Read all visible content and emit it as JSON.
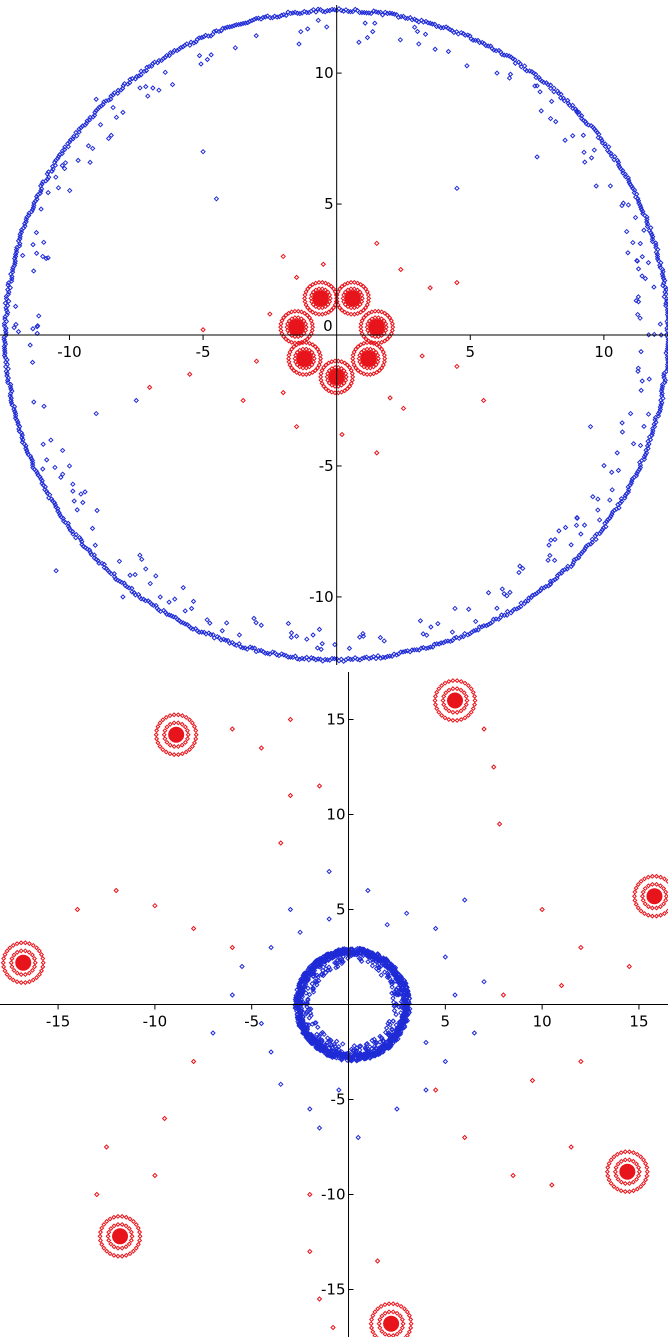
{
  "chart_data": [
    {
      "type": "scatter",
      "title": "",
      "xlabel": "",
      "ylabel": "",
      "xlim": [
        -12.6,
        12.4
      ],
      "ylim": [
        -12.6,
        12.6
      ],
      "xticks": [
        -10,
        -5,
        5,
        10
      ],
      "yticks": [
        -10,
        -5,
        5,
        10
      ],
      "xtick_labels": [
        "-10",
        "-5",
        "5",
        "10"
      ],
      "ytick_labels": [
        "-10",
        "-5",
        "5",
        "10"
      ],
      "origin_label": "0",
      "grid": false,
      "colors": {
        "blue": "#1f2bd6",
        "red": "#e8141b"
      },
      "blue_ring": {
        "center": [
          0,
          0
        ],
        "radius": 12.4
      },
      "red_clusters": [
        {
          "x": 1.5,
          "y": 0.3
        },
        {
          "x": 0.6,
          "y": 1.4
        },
        {
          "x": -0.6,
          "y": 1.4
        },
        {
          "x": -1.5,
          "y": 0.3
        },
        {
          "x": -1.2,
          "y": -0.9
        },
        {
          "x": 0.0,
          "y": -1.6
        },
        {
          "x": 1.2,
          "y": -0.9
        }
      ],
      "blue_scatter": [
        [
          -9,
          9
        ],
        [
          -8,
          8.5
        ],
        [
          -5,
          7
        ],
        [
          -4.5,
          5.2
        ],
        [
          7.5,
          6.8
        ],
        [
          9,
          8.5
        ],
        [
          6,
          10
        ],
        [
          4.5,
          5.6
        ],
        [
          -7.5,
          -2.5
        ],
        [
          -9,
          -3
        ],
        [
          -10,
          -5
        ],
        [
          9.5,
          -3.5
        ],
        [
          10.5,
          -4.5
        ],
        [
          9,
          -7
        ],
        [
          8,
          -9.5
        ],
        [
          -8,
          -10
        ],
        [
          -10.5,
          -9
        ],
        [
          11,
          -3
        ],
        [
          -11,
          3
        ],
        [
          1,
          -11.5
        ],
        [
          -1.5,
          -11.5
        ],
        [
          11.5,
          4
        ]
      ],
      "red_scatter": [
        [
          -2,
          3
        ],
        [
          -1.5,
          2.2
        ],
        [
          -2.5,
          0.8
        ],
        [
          -3,
          -1
        ],
        [
          -2,
          -2.2
        ],
        [
          -3.5,
          -2.5
        ],
        [
          -1.5,
          -3.5
        ],
        [
          1.5,
          3.5
        ],
        [
          2.4,
          2.5
        ],
        [
          3.5,
          1.8
        ],
        [
          3.2,
          -0.8
        ],
        [
          4.5,
          2
        ],
        [
          4.5,
          -1.2
        ],
        [
          2.5,
          -2.8
        ],
        [
          0.2,
          -3.8
        ],
        [
          1.5,
          -4.5
        ],
        [
          -5,
          0.2
        ],
        [
          -5.5,
          -1.5
        ],
        [
          -7,
          -2
        ],
        [
          5.5,
          -2.5
        ],
        [
          -0.5,
          2.7
        ],
        [
          2,
          -2.4
        ]
      ]
    },
    {
      "type": "scatter",
      "title": "",
      "xlabel": "",
      "ylabel": "",
      "xlim": [
        -18,
        16.5
      ],
      "ylim": [
        -17.5,
        17.5
      ],
      "xticks": [
        -15,
        -10,
        -5,
        5,
        10,
        15
      ],
      "yticks": [
        -15,
        -10,
        -5,
        5,
        10,
        15
      ],
      "xtick_labels": [
        "-15",
        "-10",
        "-5",
        "5",
        "10",
        "15"
      ],
      "ytick_labels": [
        "-15",
        "-10",
        "-5",
        "5",
        "10",
        "15"
      ],
      "grid": false,
      "colors": {
        "blue": "#1f2bd6",
        "red": "#e8141b"
      },
      "blue_ring": {
        "center": [
          0.2,
          0
        ],
        "radius": 2.8
      },
      "red_clusters": [
        {
          "x": 5.5,
          "y": 16
        },
        {
          "x": -8.9,
          "y": 14.2
        },
        {
          "x": 15.8,
          "y": 5.7
        },
        {
          "x": -16.8,
          "y": 2.2
        },
        {
          "x": 14.4,
          "y": -8.8
        },
        {
          "x": -11.8,
          "y": -12.2
        },
        {
          "x": 2.2,
          "y": -16.8
        }
      ],
      "blue_scatter": [
        [
          -3,
          5
        ],
        [
          -2.5,
          3.8
        ],
        [
          -4,
          3
        ],
        [
          -5.5,
          2
        ],
        [
          -6,
          0.5
        ],
        [
          -7,
          -1.5
        ],
        [
          -4,
          -2.5
        ],
        [
          -3.5,
          -4.2
        ],
        [
          -2,
          -5.5
        ],
        [
          -1.5,
          -6.5
        ],
        [
          0.5,
          -7
        ],
        [
          2.5,
          -5.5
        ],
        [
          4,
          -4.5
        ],
        [
          5,
          -3
        ],
        [
          6.5,
          -1.5
        ],
        [
          5.5,
          0.5
        ],
        [
          5,
          2.5
        ],
        [
          4.5,
          4
        ],
        [
          3,
          4.8
        ],
        [
          1,
          6
        ],
        [
          -1,
          7
        ],
        [
          6,
          5.5
        ],
        [
          -1,
          4.5
        ],
        [
          2,
          4.2
        ],
        [
          4,
          -2
        ],
        [
          -4.5,
          -1
        ],
        [
          -0.5,
          -4.5
        ],
        [
          7,
          1.2
        ]
      ],
      "red_scatter": [
        [
          -12,
          6
        ],
        [
          -14,
          5
        ],
        [
          -10,
          5.2
        ],
        [
          -8,
          4
        ],
        [
          -6,
          3
        ],
        [
          -3.5,
          8.5
        ],
        [
          -3,
          11
        ],
        [
          -1.5,
          11.5
        ],
        [
          -4.5,
          13.5
        ],
        [
          -6,
          14.5
        ],
        [
          -3,
          15
        ],
        [
          7.5,
          12.5
        ],
        [
          7.8,
          9.5
        ],
        [
          7,
          14.5
        ],
        [
          10,
          5
        ],
        [
          12,
          3
        ],
        [
          14.5,
          2
        ],
        [
          11,
          1
        ],
        [
          8,
          0.5
        ],
        [
          9.5,
          -4
        ],
        [
          12,
          -3
        ],
        [
          11.5,
          -7.5
        ],
        [
          10.5,
          -9.5
        ],
        [
          8.5,
          -9
        ],
        [
          6,
          -7
        ],
        [
          4.5,
          -4.5
        ],
        [
          -9.5,
          -6
        ],
        [
          -12.5,
          -7.5
        ],
        [
          -13,
          -10
        ],
        [
          -10,
          -9
        ],
        [
          -2,
          -10
        ],
        [
          -2,
          -13
        ],
        [
          -1.5,
          -15.5
        ],
        [
          -0.8,
          -17
        ],
        [
          1.5,
          -13.5
        ],
        [
          -8,
          -3
        ]
      ]
    }
  ]
}
